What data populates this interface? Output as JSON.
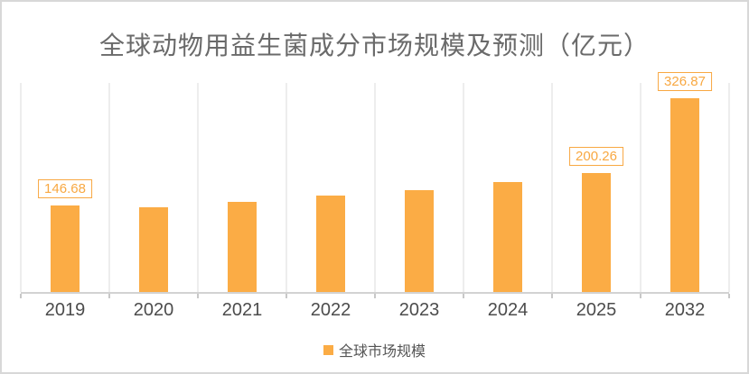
{
  "chart_data": {
    "type": "bar",
    "title": "全球动物用益生菌成分市场规模及预测（亿元）",
    "unit": "亿元",
    "categories": [
      "2019",
      "2020",
      "2021",
      "2022",
      "2023",
      "2024",
      "2025",
      "2032"
    ],
    "series": [
      {
        "name": "全球市场规模",
        "values": [
          146.68,
          142.2,
          151.7,
          162.2,
          172.3,
          185.9,
          200.26,
          326.87
        ]
      }
    ],
    "values_note": "Only 2019, 2025 and 2032 carry visible data labels; remaining values estimated from bar heights",
    "data_labels_shown": {
      "2019": "146.68",
      "2025": "200.26",
      "2032": "326.87"
    },
    "legend": {
      "position": "bottom",
      "entries": [
        "全球市场规模"
      ]
    },
    "xlabel": "",
    "ylabel": "",
    "ylim": [
      0,
      350
    ],
    "grid": "vertical category separators only",
    "colors": {
      "bar": "#fbac45",
      "data_label_text": "#f8a842",
      "data_label_border": "#f8a842",
      "title_text": "#6a6a6a",
      "axis_tick_text": "#4c4c4c",
      "legend_text": "#555555",
      "gridline": "#ededed",
      "axis_line": "#d2d2d2",
      "frame_border": "#d8d8d8",
      "background": "#ffffff"
    }
  }
}
